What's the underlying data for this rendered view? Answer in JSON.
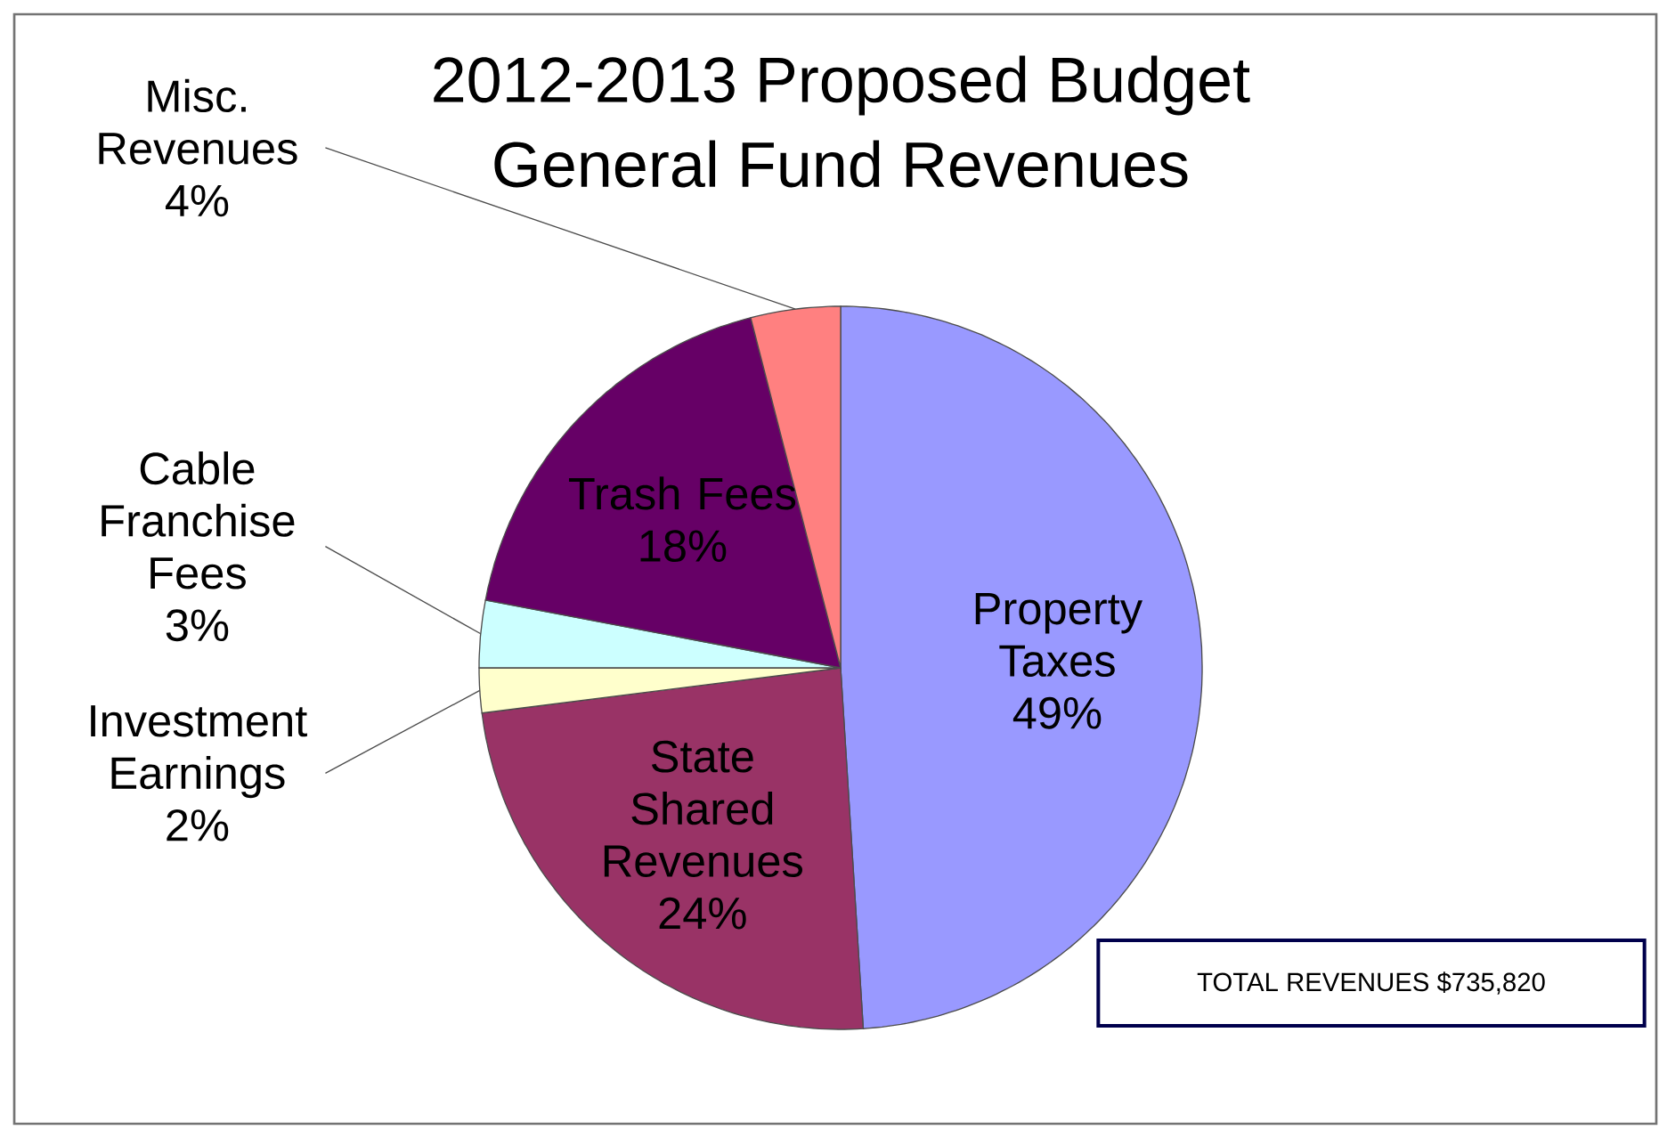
{
  "chart_data": {
    "type": "pie",
    "title": "2012-2013 Proposed Budget",
    "subtitle": "General Fund Revenues",
    "categories": [
      "Property Taxes",
      "State Shared Revenues",
      "Investment Earnings",
      "Cable Franchise Fees",
      "Trash Fees",
      "Misc. Revenues"
    ],
    "values": [
      49,
      24,
      2,
      3,
      18,
      4
    ],
    "value_labels": [
      "49%",
      "24%",
      "2%",
      "3%",
      "18%",
      "4%"
    ],
    "colors": [
      "#9999ff",
      "#993366",
      "#ffffcc",
      "#ccffff",
      "#660066",
      "#ff8080"
    ],
    "annotations": [
      "TOTAL REVENUES $735,820"
    ]
  }
}
